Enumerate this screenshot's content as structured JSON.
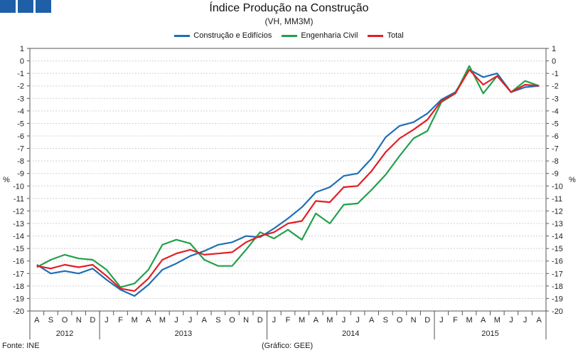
{
  "header": {
    "title": "Índice Produção na Construção",
    "subtitle": "(VH, MM3M)"
  },
  "footer": {
    "source": "Fonte: INE",
    "credit": "(Gráfico: GEE)"
  },
  "chart_data": {
    "type": "line",
    "title": "Índice Produção na Construção",
    "subtitle": "(VH, MM3M)",
    "ylabel": "%",
    "ylim": [
      -20,
      1
    ],
    "yticks": [
      1,
      0,
      -1,
      -2,
      -3,
      -4,
      -5,
      -6,
      -7,
      -8,
      -9,
      -10,
      -11,
      -12,
      -13,
      -14,
      -15,
      -16,
      -17,
      -18,
      -19,
      -20
    ],
    "months": [
      "A",
      "S",
      "O",
      "N",
      "D",
      "J",
      "F",
      "M",
      "A",
      "M",
      "J",
      "J",
      "A",
      "S",
      "O",
      "N",
      "D",
      "J",
      "F",
      "M",
      "A",
      "M",
      "J",
      "J",
      "A",
      "S",
      "O",
      "N",
      "D",
      "J",
      "F",
      "M",
      "A",
      "M",
      "J",
      "J",
      "A"
    ],
    "years": [
      {
        "label": "2012",
        "start": 0,
        "end": 4
      },
      {
        "label": "2013",
        "start": 5,
        "end": 16
      },
      {
        "label": "2014",
        "start": 17,
        "end": 28
      },
      {
        "label": "2015",
        "start": 29,
        "end": 36
      }
    ],
    "series": [
      {
        "name": "Construção e Edifícios",
        "color": "#1f6eb4",
        "values": [
          -16.3,
          -17.0,
          -16.8,
          -17.0,
          -16.6,
          -17.5,
          -18.3,
          -18.8,
          -17.9,
          -16.7,
          -16.2,
          -15.6,
          -15.2,
          -14.7,
          -14.5,
          -14.0,
          -14.1,
          -13.4,
          -12.6,
          -11.7,
          -10.5,
          -10.1,
          -9.2,
          -9.0,
          -7.8,
          -6.1,
          -5.2,
          -4.9,
          -4.2,
          -3.1,
          -2.5,
          -0.7,
          -1.3,
          -1.0,
          -2.5,
          -2.1,
          -2.0
        ]
      },
      {
        "name": "Engenharia Civil",
        "color": "#22a04b",
        "values": [
          -16.5,
          -15.9,
          -15.5,
          -15.8,
          -15.9,
          -16.7,
          -18.1,
          -17.8,
          -16.7,
          -14.7,
          -14.3,
          -14.6,
          -15.9,
          -16.4,
          -16.4,
          -15.1,
          -13.7,
          -14.2,
          -13.5,
          -14.3,
          -12.2,
          -13.0,
          -11.5,
          -11.4,
          -10.3,
          -9.1,
          -7.6,
          -6.2,
          -5.6,
          -3.3,
          -2.6,
          -0.4,
          -2.6,
          -1.2,
          -2.5,
          -1.6,
          -2.0
        ]
      },
      {
        "name": "Total",
        "color": "#e31e24",
        "values": [
          -16.4,
          -16.6,
          -16.3,
          -16.5,
          -16.3,
          -17.2,
          -18.2,
          -18.4,
          -17.4,
          -15.9,
          -15.4,
          -15.1,
          -15.5,
          -15.4,
          -15.3,
          -14.5,
          -14.0,
          -13.7,
          -13.0,
          -12.8,
          -11.2,
          -11.3,
          -10.1,
          -10.0,
          -8.8,
          -7.3,
          -6.2,
          -5.5,
          -4.7,
          -3.2,
          -2.6,
          -0.7,
          -1.9,
          -1.2,
          -2.5,
          -1.9,
          -2.0
        ]
      }
    ]
  }
}
